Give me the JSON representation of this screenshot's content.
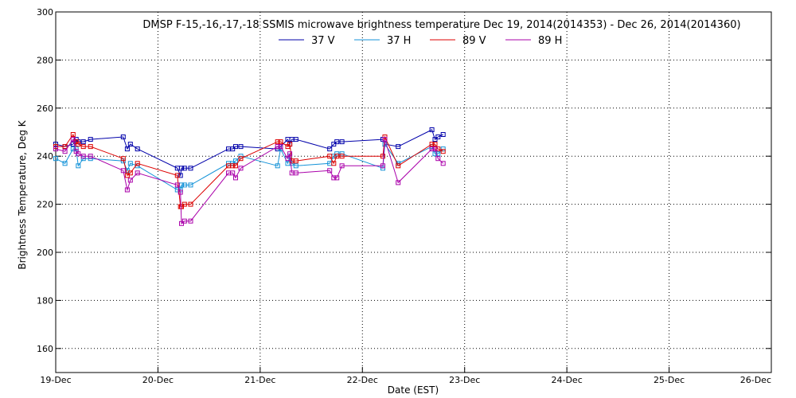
{
  "chart_data": {
    "type": "line",
    "title": "DMSP F-15,-16,-17,-18 SSMIS microwave brightness temperature Dec 19, 2014(2014353) - Dec 26, 2014(2014360)",
    "xlabel": "Date (EST)",
    "ylabel": "Brightness Temperature, Deg K",
    "xlim": [
      0,
      7
    ],
    "ylim": [
      150,
      300
    ],
    "x_ticks": [
      {
        "value": 0,
        "label": "19-Dec"
      },
      {
        "value": 1,
        "label": "20-Dec"
      },
      {
        "value": 2,
        "label": "21-Dec"
      },
      {
        "value": 3,
        "label": "22-Dec"
      },
      {
        "value": 4,
        "label": "23-Dec"
      },
      {
        "value": 5,
        "label": "24-Dec"
      },
      {
        "value": 6,
        "label": "25-Dec"
      },
      {
        "value": 7,
        "label": "26-Dec"
      }
    ],
    "y_ticks": [
      {
        "value": 160,
        "label": "160"
      },
      {
        "value": 180,
        "label": "180"
      },
      {
        "value": 200,
        "label": "200"
      },
      {
        "value": 220,
        "label": "220"
      },
      {
        "value": 240,
        "label": "240"
      },
      {
        "value": 260,
        "label": "260"
      },
      {
        "value": 280,
        "label": "280"
      },
      {
        "value": 300,
        "label": "300"
      }
    ],
    "grid": true,
    "legend_position": "top",
    "series": [
      {
        "name": "37 V",
        "color": "#0000aa",
        "x": [
          0.0,
          0.09,
          0.17,
          0.2,
          0.22,
          0.27,
          0.34,
          0.66,
          0.7,
          0.73,
          0.8,
          1.19,
          1.22,
          1.23,
          1.26,
          1.32,
          1.69,
          1.73,
          1.76,
          1.81,
          2.17,
          2.2,
          2.27,
          2.29,
          2.31,
          2.35,
          2.68,
          2.72,
          2.75,
          2.8,
          3.2,
          3.22,
          3.35,
          3.68,
          3.71,
          3.74,
          3.79
        ],
        "values": [
          245,
          244,
          245,
          247,
          246,
          246,
          247,
          248,
          243,
          245,
          243,
          235,
          232,
          235,
          235,
          235,
          243,
          243,
          244,
          244,
          243,
          244,
          247,
          245,
          247,
          247,
          243,
          245,
          246,
          246,
          247,
          245,
          244,
          251,
          247,
          248,
          249
        ]
      },
      {
        "name": "37 H",
        "color": "#1493d8",
        "x": [
          0.0,
          0.09,
          0.17,
          0.2,
          0.22,
          0.27,
          0.34,
          0.66,
          0.7,
          0.73,
          0.8,
          1.19,
          1.22,
          1.23,
          1.26,
          1.32,
          1.69,
          1.73,
          1.76,
          1.81,
          2.17,
          2.2,
          2.27,
          2.29,
          2.31,
          2.35,
          2.68,
          2.72,
          2.75,
          2.8,
          3.2,
          3.22,
          3.35,
          3.68,
          3.71,
          3.74,
          3.79
        ],
        "values": [
          239,
          237,
          243,
          243,
          236,
          239,
          239,
          238,
          234,
          237,
          236,
          226,
          226,
          228,
          228,
          228,
          237,
          237,
          238,
          240,
          236,
          243,
          237,
          240,
          237,
          236,
          237,
          240,
          241,
          241,
          235,
          245,
          237,
          244,
          241,
          241,
          243
        ]
      },
      {
        "name": "89 V",
        "color": "#dd0000",
        "x": [
          0.0,
          0.09,
          0.17,
          0.2,
          0.22,
          0.27,
          0.34,
          0.66,
          0.7,
          0.73,
          0.8,
          1.19,
          1.22,
          1.23,
          1.26,
          1.32,
          1.69,
          1.73,
          1.76,
          1.81,
          2.17,
          2.2,
          2.27,
          2.29,
          2.31,
          2.35,
          2.68,
          2.72,
          2.75,
          2.8,
          3.2,
          3.22,
          3.35,
          3.68,
          3.71,
          3.74,
          3.79
        ],
        "values": [
          244,
          244,
          249,
          246,
          245,
          244,
          244,
          239,
          232,
          233,
          237,
          232,
          219,
          219,
          220,
          220,
          236,
          236,
          236,
          239,
          246,
          246,
          244,
          245,
          238,
          238,
          240,
          237,
          240,
          240,
          240,
          248,
          236,
          245,
          245,
          243,
          242
        ]
      },
      {
        "name": "89 H",
        "color": "#aa00aa",
        "x": [
          0.0,
          0.09,
          0.17,
          0.2,
          0.22,
          0.27,
          0.34,
          0.66,
          0.7,
          0.73,
          0.8,
          1.19,
          1.22,
          1.23,
          1.26,
          1.32,
          1.69,
          1.73,
          1.76,
          1.81,
          2.17,
          2.2,
          2.27,
          2.29,
          2.31,
          2.35,
          2.68,
          2.72,
          2.75,
          2.8,
          3.2,
          3.22,
          3.35,
          3.68,
          3.71,
          3.74,
          3.79
        ],
        "values": [
          243,
          242,
          247,
          242,
          241,
          240,
          240,
          234,
          226,
          230,
          233,
          228,
          225,
          212,
          213,
          213,
          233,
          233,
          231,
          235,
          244,
          244,
          239,
          241,
          233,
          233,
          234,
          231,
          231,
          236,
          236,
          247,
          229,
          243,
          243,
          239,
          237
        ]
      }
    ]
  }
}
